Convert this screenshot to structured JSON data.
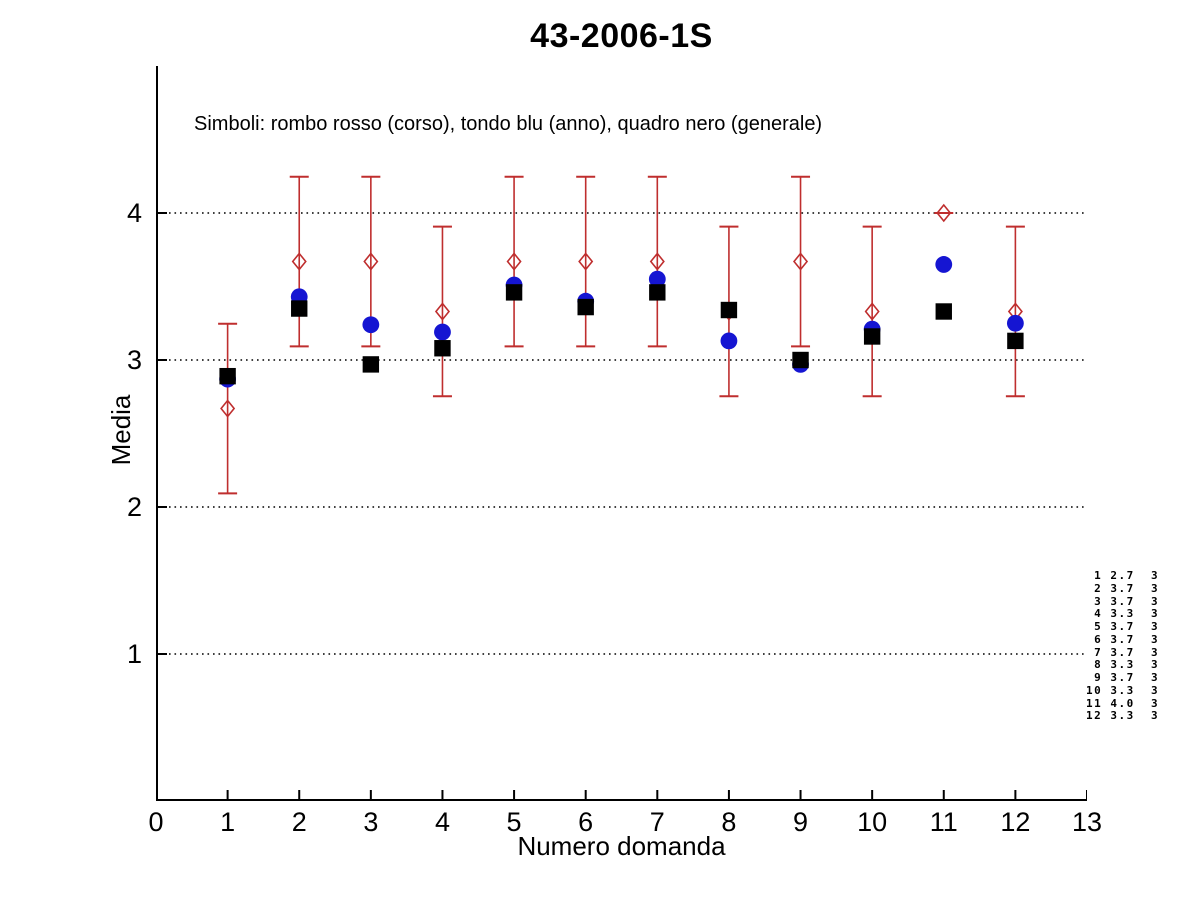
{
  "chart_data": {
    "type": "scatter",
    "title": "43-2006-1S",
    "subtitle": "Simboli: rombo rosso (corso), tondo blu (anno), quadro nero (generale)",
    "xlabel": "Numero domanda",
    "ylabel": "Media",
    "xlim": [
      0,
      13
    ],
    "ylim": [
      0,
      5
    ],
    "xticks": [
      0,
      1,
      2,
      3,
      4,
      5,
      6,
      7,
      8,
      9,
      10,
      11,
      12,
      13
    ],
    "yticks": [
      1,
      2,
      3,
      4
    ],
    "grid": "horizontal dotted black lines at y=1,2,3,4; no top/right axis box",
    "x": [
      1,
      2,
      3,
      4,
      5,
      6,
      7,
      8,
      9,
      10,
      11,
      12
    ],
    "series": [
      {
        "name": "corso",
        "legend": "rombo rosso (corso)",
        "marker": "open-diamond",
        "color": "#bf2e2e",
        "values": [
          2.67,
          3.67,
          3.67,
          3.33,
          3.67,
          3.67,
          3.67,
          3.33,
          3.67,
          3.33,
          4.0,
          3.33
        ],
        "errors": [
          0.577,
          0.577,
          0.577,
          0.577,
          0.577,
          0.577,
          0.577,
          0.577,
          0.577,
          0.577,
          0,
          0.577
        ]
      },
      {
        "name": "anno",
        "legend": "tondo blu (anno)",
        "marker": "filled-circle",
        "color": "#1515d2",
        "values": [
          2.87,
          3.43,
          3.24,
          3.19,
          3.51,
          3.4,
          3.55,
          3.13,
          2.97,
          3.21,
          3.65,
          3.25
        ]
      },
      {
        "name": "generale",
        "legend": "quadro nero (generale)",
        "marker": "filled-square",
        "color": "#000000",
        "values": [
          2.89,
          3.35,
          2.97,
          3.08,
          3.46,
          3.36,
          3.46,
          3.34,
          3.0,
          3.16,
          3.33,
          3.13
        ]
      }
    ],
    "stats_text_lines": [
      " 1 2.7  3",
      " 2 3.7  3",
      " 3 3.7  3",
      " 4 3.3  3",
      " 5 3.7  3",
      " 6 3.7  3",
      " 7 3.7  3",
      " 8 3.3  3",
      " 9 3.7  3",
      "10 3.3  3",
      "11 4.0  3",
      "12 3.3  3"
    ]
  }
}
